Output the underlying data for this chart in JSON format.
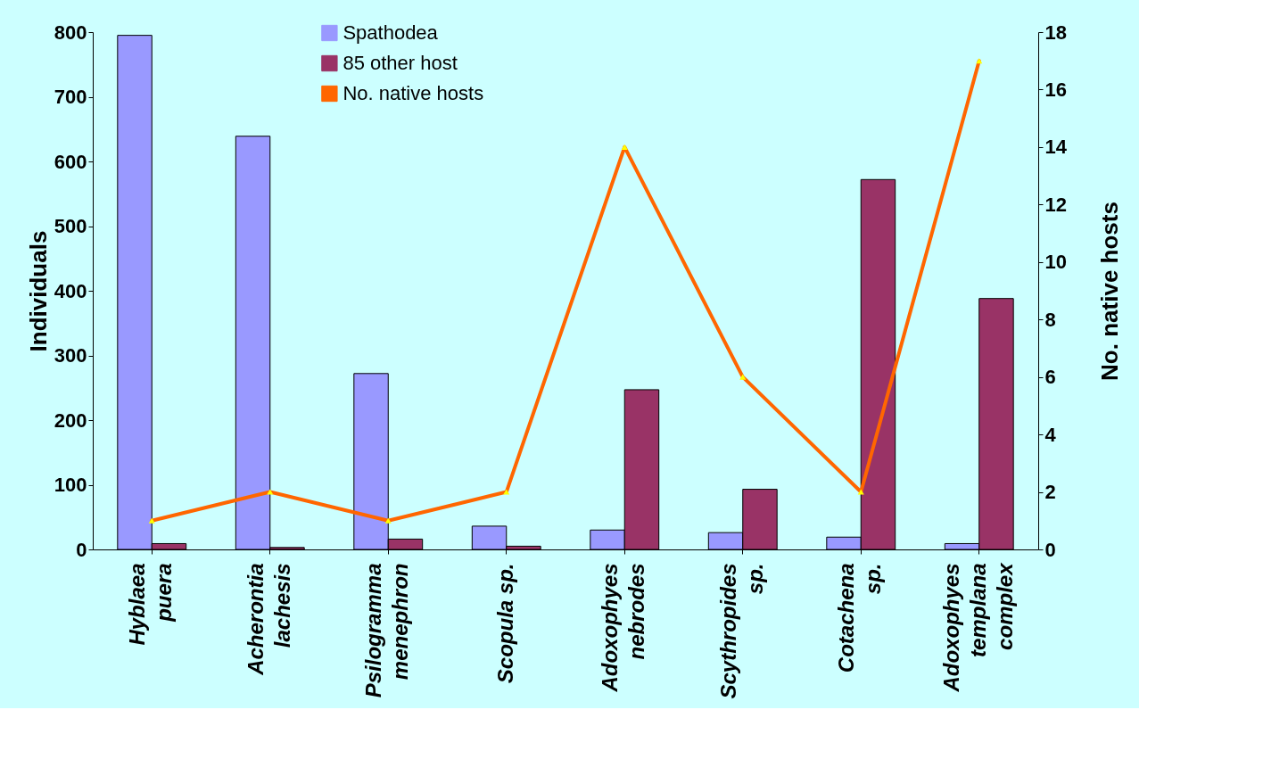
{
  "chart_data": {
    "type": "bar",
    "categories": [
      "Hyblaea\npuera",
      "Acherontia\nlachesis",
      "Psilogramma\nmenephron",
      "Scopula sp.",
      "Adoxophyes\nnebrodes",
      "Scythropides\nsp.",
      "Cotachena\nsp.",
      "Adoxophyes\ntemplana\ncomplex"
    ],
    "ylabel": "Individuals",
    "y2label": "No. native hosts",
    "ylim": [
      0,
      800
    ],
    "yticks": [
      0,
      100,
      200,
      300,
      400,
      500,
      600,
      700,
      800
    ],
    "y2lim": [
      0,
      18
    ],
    "y2ticks": [
      0,
      2,
      4,
      6,
      8,
      10,
      12,
      14,
      16,
      18
    ],
    "legend": "top",
    "grid": false,
    "series": [
      {
        "name": "Spathodea",
        "color": "#9999ff",
        "values": [
          795,
          639,
          272,
          36,
          30,
          26,
          19,
          9
        ]
      },
      {
        "name": "85 other host",
        "color": "#993366",
        "values": [
          9,
          3,
          16,
          5,
          247,
          93,
          572,
          388
        ]
      },
      {
        "name": "No. native hosts",
        "type": "line",
        "axis": "y2",
        "marker": "triangle",
        "color": "#ff6600",
        "values": [
          1,
          2,
          1,
          2,
          14,
          6,
          2,
          17
        ]
      }
    ]
  }
}
